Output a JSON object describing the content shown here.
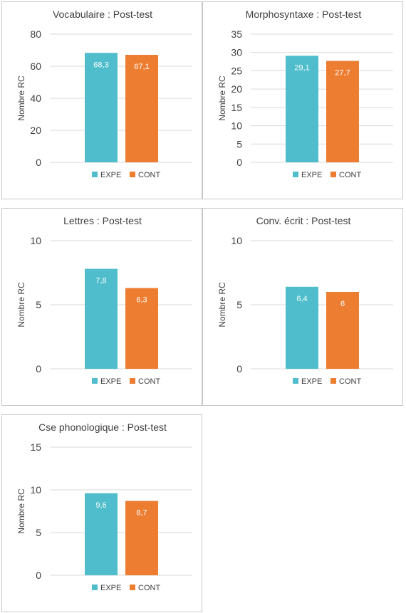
{
  "chart_data": [
    {
      "type": "bar",
      "title": "Vocabulaire : Post-test",
      "ylabel": "Nombre RC",
      "categories": [
        "EXPE",
        "CONT"
      ],
      "values": [
        68.3,
        67.1
      ],
      "value_labels": [
        "68,3",
        "67,1"
      ],
      "ylim": [
        0,
        80
      ],
      "yticks": [
        0,
        20,
        40,
        60,
        80
      ],
      "colors": [
        "#4fbdcb",
        "#ed7d31"
      ],
      "grid": true,
      "legend": "bottom"
    },
    {
      "type": "bar",
      "title": "Morphosyntaxe : Post-test",
      "ylabel": "Nombre RC",
      "categories": [
        "EXPE",
        "CONT"
      ],
      "values": [
        29.1,
        27.7
      ],
      "value_labels": [
        "29,1",
        "27,7"
      ],
      "ylim": [
        0,
        35
      ],
      "yticks": [
        0,
        5,
        10,
        15,
        20,
        25,
        30,
        35
      ],
      "colors": [
        "#4fbdcb",
        "#ed7d31"
      ],
      "grid": true,
      "legend": "bottom"
    },
    {
      "type": "bar",
      "title": "Lettres : Post-test",
      "ylabel": "Nombre RC",
      "categories": [
        "EXPE",
        "CONT"
      ],
      "values": [
        7.8,
        6.3
      ],
      "value_labels": [
        "7,8",
        "6,3"
      ],
      "ylim": [
        0,
        10
      ],
      "yticks": [
        0,
        5,
        10
      ],
      "colors": [
        "#4fbdcb",
        "#ed7d31"
      ],
      "grid": true,
      "legend": "bottom"
    },
    {
      "type": "bar",
      "title": "Conv. écrit : Post-test",
      "ylabel": "Nombre RC",
      "categories": [
        "EXPE",
        "CONT"
      ],
      "values": [
        6.4,
        6
      ],
      "value_labels": [
        "6,4",
        "6"
      ],
      "ylim": [
        0,
        10
      ],
      "yticks": [
        0,
        5,
        10
      ],
      "colors": [
        "#4fbdcb",
        "#ed7d31"
      ],
      "grid": true,
      "legend": "bottom"
    },
    {
      "type": "bar",
      "title": "Cse phonologique : Post-test",
      "ylabel": "Nombre RC",
      "categories": [
        "EXPE",
        "CONT"
      ],
      "values": [
        9.6,
        8.7
      ],
      "value_labels": [
        "9,6",
        "8,7"
      ],
      "ylim": [
        0,
        15
      ],
      "yticks": [
        0,
        5,
        10,
        15
      ],
      "colors": [
        "#4fbdcb",
        "#ed7d31"
      ],
      "grid": true,
      "legend": "bottom"
    }
  ]
}
